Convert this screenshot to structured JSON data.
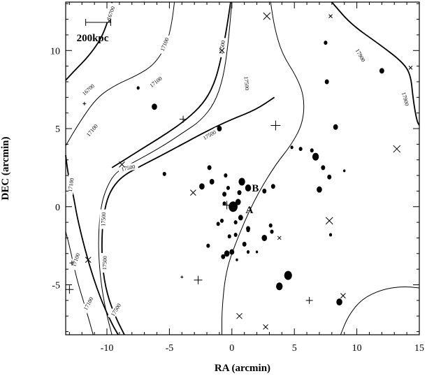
{
  "chart_data": {
    "type": "scatter",
    "title": "",
    "xlabel": "RA (arcmin)",
    "ylabel": "DEC (arcmin)",
    "xlim": [
      -13.3,
      15
    ],
    "ylim": [
      -8.2,
      13.1
    ],
    "x_ticks": [
      -10,
      -5,
      0,
      5,
      10,
      15
    ],
    "x_tick_labels": [
      "-10",
      "-5",
      "0",
      "5",
      "10",
      "15"
    ],
    "y_ticks": [
      -5,
      0,
      5,
      10
    ],
    "y_tick_labels": [
      "-5",
      "0",
      "5",
      "10"
    ],
    "grid": false,
    "scale_bar": {
      "label": "200kpc",
      "x_start": -11.7,
      "x_end": -9.7,
      "y": 11.8
    },
    "annotations": [
      {
        "text": "A",
        "x": 1.1,
        "y": -0.2
      },
      {
        "text": "B",
        "x": 1.6,
        "y": 1.2
      }
    ],
    "contour_levels": [
      16700,
      17100,
      17500,
      17900
    ],
    "contours": [
      {
        "level": 16700,
        "style": "thick",
        "points": [
          [
            -13.3,
            8.1
          ],
          [
            -12.6,
            8.7
          ],
          [
            -11.5,
            9.6
          ],
          [
            -10.5,
            10.7
          ],
          [
            -9.9,
            11.9
          ],
          [
            -9.6,
            13.1
          ]
        ]
      },
      {
        "level": 17100,
        "style": "thin",
        "points": [
          [
            -13.3,
            3.9
          ],
          [
            -12.2,
            5.4
          ],
          [
            -10.8,
            7.0
          ],
          [
            -9.3,
            7.8
          ],
          [
            -7.6,
            8.4
          ],
          [
            -6.2,
            9.1
          ],
          [
            -5.2,
            10.4
          ],
          [
            -4.8,
            11.8
          ],
          [
            -4.6,
            13.1
          ]
        ]
      },
      {
        "level": 17500,
        "style": "thick",
        "points": [
          [
            -9.6,
            2.5
          ],
          [
            -8.2,
            3.2
          ],
          [
            -6.8,
            3.9
          ],
          [
            -5.2,
            4.7
          ],
          [
            -3.6,
            5.6
          ],
          [
            -2.3,
            6.6
          ],
          [
            -1.5,
            7.7
          ],
          [
            -1.0,
            9.0
          ],
          [
            -0.6,
            10.6
          ],
          [
            -0.3,
            12.0
          ],
          [
            -0.1,
            13.1
          ]
        ]
      },
      {
        "level": 17500,
        "style": "thin",
        "points": [
          [
            -0.8,
            -8.2
          ],
          [
            -0.8,
            -6.6
          ],
          [
            -0.5,
            -4.2
          ],
          [
            0.3,
            -2.3
          ],
          [
            1.7,
            0.3
          ],
          [
            3.4,
            2.6
          ],
          [
            4.8,
            4.0
          ],
          [
            5.7,
            5.4
          ],
          [
            5.8,
            7.0
          ],
          [
            5.2,
            8.3
          ],
          [
            4.0,
            9.8
          ],
          [
            3.4,
            11.5
          ],
          [
            3.1,
            13.1
          ]
        ]
      },
      {
        "level": 17900,
        "style": "thick",
        "points": [
          [
            8.0,
            13.1
          ],
          [
            9.5,
            11.7
          ],
          [
            11.8,
            10.4
          ],
          [
            13.6,
            9.3
          ],
          [
            14.3,
            8.5
          ],
          [
            14.5,
            6.9
          ],
          [
            14.8,
            5.5
          ],
          [
            15.0,
            5.2
          ]
        ]
      },
      {
        "level": 17100,
        "style": "thin",
        "points": [
          [
            -13.3,
            -1.6
          ],
          [
            -13.0,
            -2.5
          ],
          [
            -12.4,
            -4.7
          ],
          [
            -11.7,
            -6.5
          ],
          [
            -11.1,
            -8.2
          ]
        ]
      },
      {
        "level": 17100,
        "style": "thick",
        "points": [
          [
            -13.3,
            3.3
          ],
          [
            -13.1,
            2.0
          ],
          [
            -12.7,
            0.8
          ],
          [
            -12.4,
            -0.6
          ],
          [
            -11.9,
            -2.3
          ],
          [
            -11.2,
            -4.3
          ],
          [
            -10.4,
            -6.1
          ],
          [
            -9.6,
            -7.5
          ],
          [
            -9.1,
            -8.2
          ]
        ]
      },
      {
        "level": 17500,
        "style": "thick",
        "points": [
          [
            -8.6,
            -8.2
          ],
          [
            -9.3,
            -7.1
          ],
          [
            -10.0,
            -5.6
          ],
          [
            -10.4,
            -3.7
          ],
          [
            -10.4,
            -1.4
          ],
          [
            -10.1,
            0.2
          ],
          [
            -9.6,
            1.2
          ],
          [
            -8.7,
            2.0
          ],
          [
            -7.3,
            2.6
          ],
          [
            -5.6,
            3.3
          ],
          [
            -4.2,
            3.9
          ],
          [
            -2.8,
            4.5
          ],
          [
            -1.6,
            5.0
          ],
          [
            0.0,
            5.6
          ],
          [
            1.9,
            6.2
          ],
          [
            3.4,
            7.0
          ]
        ]
      },
      {
        "level": 17500,
        "style": "thin",
        "points": [
          [
            -9.6,
            -8.2
          ],
          [
            -9.9,
            -7.3
          ],
          [
            -10.3,
            -5.8
          ],
          [
            -10.6,
            -4.0
          ],
          [
            -10.7,
            -2.0
          ],
          [
            -10.5,
            0.0
          ],
          [
            -10.0,
            1.3
          ],
          [
            -9.3,
            2.2
          ],
          [
            -8.2,
            2.7
          ],
          [
            -6.8,
            3.3
          ],
          [
            -5.3,
            4.0
          ],
          [
            -3.8,
            4.8
          ],
          [
            -2.5,
            5.5
          ],
          [
            -1.4,
            6.6
          ],
          [
            -0.7,
            8.2
          ],
          [
            -0.3,
            10.4
          ],
          [
            0.0,
            13.1
          ]
        ]
      },
      {
        "level": 17900,
        "style": "thin",
        "points": [
          [
            8.7,
            -8.2
          ],
          [
            9.3,
            -7.0
          ],
          [
            10.4,
            -5.9
          ],
          [
            12.0,
            -5.3
          ],
          [
            13.6,
            -5.1
          ],
          [
            15.0,
            -5.2
          ]
        ]
      }
    ],
    "contour_labels": [
      {
        "text": "16700",
        "x": -9.7,
        "y": 12.4,
        "angle": -70
      },
      {
        "text": "16700",
        "x": -11.5,
        "y": 7.5,
        "angle": -42
      },
      {
        "text": "17100",
        "x": -6.1,
        "y": 8.0,
        "angle": -38
      },
      {
        "text": "17100",
        "x": -5.4,
        "y": 10.4,
        "angle": -68
      },
      {
        "text": "17100",
        "x": -11.2,
        "y": 4.9,
        "angle": -50
      },
      {
        "text": "17500",
        "x": -0.8,
        "y": 10.2,
        "angle": -80
      },
      {
        "text": "17500",
        "x": 1.2,
        "y": 7.9,
        "angle": 85
      },
      {
        "text": "17500",
        "x": -1.8,
        "y": 4.6,
        "angle": -30
      },
      {
        "text": "17500",
        "x": -8.3,
        "y": 2.5,
        "angle": -12
      },
      {
        "text": "17900",
        "x": 10.3,
        "y": 9.7,
        "angle": 60
      },
      {
        "text": "17900",
        "x": 13.9,
        "y": 6.9,
        "angle": 75
      },
      {
        "text": "17100",
        "x": -12.9,
        "y": 1.4,
        "angle": -82
      },
      {
        "text": "17100",
        "x": -12.5,
        "y": -3.4,
        "angle": -70
      },
      {
        "text": "17500",
        "x": -10.3,
        "y": -0.8,
        "angle": -88
      },
      {
        "text": "17500",
        "x": -10.2,
        "y": -3.6,
        "angle": -88
      },
      {
        "text": "17100",
        "x": -11.5,
        "y": -6.2,
        "angle": -62
      },
      {
        "text": "17500",
        "x": -9.3,
        "y": -6.6,
        "angle": -58
      }
    ],
    "series": [
      {
        "marker": "filled-circle",
        "points": [
          [
            0.1,
            0.0,
            7.5
          ],
          [
            0.5,
            0.3,
            4.5
          ],
          [
            0.8,
            1.6,
            5.5
          ],
          [
            1.3,
            1.2,
            5
          ],
          [
            0.7,
            -0.7,
            4
          ],
          [
            0.6,
            0.9,
            3.5
          ],
          [
            -0.6,
            0.8,
            3.5
          ],
          [
            -0.3,
            1.2,
            3
          ],
          [
            -1.6,
            1.6,
            4
          ],
          [
            -2.4,
            1.3,
            4.5
          ],
          [
            -1.8,
            2.5,
            3.5
          ],
          [
            -0.5,
            2.0,
            3
          ],
          [
            -0.6,
            0.2,
            3
          ],
          [
            0.3,
            -1.0,
            3
          ],
          [
            1.3,
            -1.4,
            3.5
          ],
          [
            1.0,
            -2.4,
            3.5
          ],
          [
            0.0,
            -2.9,
            4
          ],
          [
            -0.4,
            -3.0,
            4.5
          ],
          [
            -0.7,
            -3.2,
            3.5
          ],
          [
            -1.1,
            -1.1,
            3
          ],
          [
            -1.9,
            -2.5,
            3
          ],
          [
            -0.8,
            -0.9,
            3
          ],
          [
            -0.2,
            -1.9,
            3
          ],
          [
            0.3,
            -1.8,
            3
          ],
          [
            1.3,
            -2.9,
            2.5
          ],
          [
            2.6,
            -2.0,
            4.5
          ],
          [
            2.6,
            1.0,
            3.5
          ],
          [
            3.2,
            -1.6,
            3
          ],
          [
            3.1,
            -1.2,
            3
          ],
          [
            3.3,
            1.3,
            3.5
          ],
          [
            3.8,
            -5.1,
            5.5
          ],
          [
            4.5,
            -4.4,
            6.5
          ],
          [
            5.5,
            3.7,
            3
          ],
          [
            6.4,
            3.6,
            3
          ],
          [
            6.7,
            3.2,
            5.5
          ],
          [
            7.3,
            2.5,
            3.5
          ],
          [
            7.0,
            1.1,
            4.5
          ],
          [
            7.8,
            1.9,
            3.5
          ],
          [
            8.3,
            5.1,
            4
          ],
          [
            7.6,
            8.0,
            3.5
          ],
          [
            7.5,
            10.5,
            3
          ],
          [
            12.0,
            8.7,
            4
          ],
          [
            -6.2,
            6.4,
            4.5
          ],
          [
            -1.0,
            5.0,
            4
          ],
          [
            -5.4,
            2.1,
            3
          ],
          [
            -7.5,
            7.6,
            2.5
          ],
          [
            9.0,
            2.3,
            2
          ],
          [
            8.6,
            -6.1,
            5
          ],
          [
            7.9,
            -1.8,
            2.5
          ],
          [
            2.0,
            -2.9,
            2
          ],
          [
            0.4,
            -3.4,
            2
          ],
          [
            1.3,
            -1.5,
            3
          ],
          [
            4.8,
            3.8,
            2.5
          ]
        ]
      },
      {
        "marker": "plus",
        "points": [
          [
            -0.4,
            0.1,
            6
          ],
          [
            3.5,
            5.2,
            7
          ],
          [
            -3.9,
            5.6,
            5
          ],
          [
            -2.7,
            -4.7,
            6
          ],
          [
            6.2,
            -6.0,
            5
          ],
          [
            -4.0,
            -4.5,
            2
          ],
          [
            -11.8,
            6.6,
            2.5
          ],
          [
            -12.8,
            -3.6,
            3.5
          ],
          [
            -13.0,
            -5.3,
            6
          ]
        ]
      },
      {
        "marker": "cross",
        "points": [
          [
            -0.8,
            10.0,
            3.5
          ],
          [
            2.8,
            12.2,
            5
          ],
          [
            -8.8,
            2.7,
            4
          ],
          [
            -3.1,
            0.9,
            4
          ],
          [
            7.8,
            -0.9,
            5
          ],
          [
            13.2,
            3.7,
            5
          ],
          [
            0.6,
            -7.0,
            4
          ],
          [
            2.7,
            -7.7,
            3.5
          ],
          [
            8.9,
            -5.7,
            3.5
          ],
          [
            7.9,
            12.2,
            2.5
          ],
          [
            14.3,
            8.9,
            2.5
          ],
          [
            -11.5,
            -3.4,
            4
          ],
          [
            3.8,
            -2.0,
            2.5
          ],
          [
            -9.8,
            11.9,
            2.5
          ]
        ]
      }
    ]
  }
}
